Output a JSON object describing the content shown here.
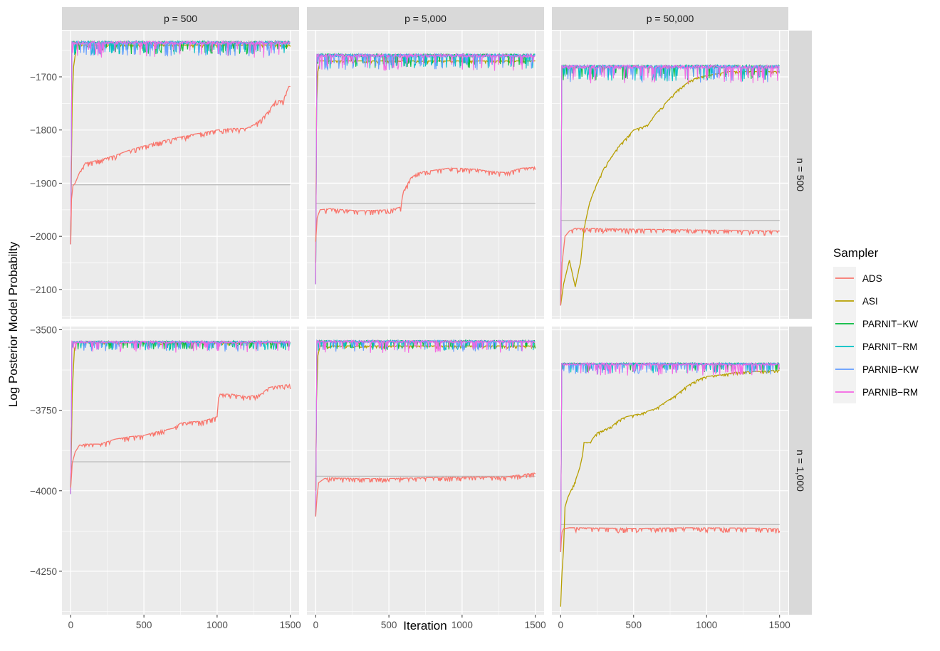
{
  "chart_data": {
    "type": "line",
    "xlabel": "Iteration",
    "ylabel": "Log Posterior Model Probabilty",
    "x_ticks": [
      0,
      500,
      1000,
      1500
    ],
    "x_range": [
      -60,
      1560
    ],
    "columns": [
      "p = 500",
      "p = 5,000",
      "p = 50,000"
    ],
    "rows": [
      "n = 500",
      "n = 1,000"
    ],
    "row_scales": [
      {
        "ylim": [
          -2155,
          -1613
        ],
        "ticks": [
          -2100,
          -2000,
          -1900,
          -1800,
          -1700
        ],
        "tick_labels": [
          "−2100",
          "−2000",
          "−1900",
          "−1800",
          "−1700"
        ]
      },
      {
        "ylim": [
          -4385,
          -3490
        ],
        "ticks": [
          -4250,
          -4000,
          -3750,
          -3500
        ],
        "tick_labels": [
          "−4250",
          "−4000",
          "−3750",
          "−3500"
        ]
      }
    ],
    "legend": {
      "title": "Sampler",
      "placement": "right",
      "entries": [
        {
          "name": "ADS",
          "color": "#F8766D"
        },
        {
          "name": "ASI",
          "color": "#B79F00"
        },
        {
          "name": "PARNIT−KW",
          "color": "#00BA38"
        },
        {
          "name": "PARNIT−RM",
          "color": "#00BFC4"
        },
        {
          "name": "PARNIB−KW",
          "color": "#619CFF"
        },
        {
          "name": "PARNIB−RM",
          "color": "#F564E3"
        }
      ]
    },
    "reference_line_color": "#BEBEBE",
    "panels": [
      {
        "row": 0,
        "col": 0,
        "reference": -1903,
        "parni": {
          "start": -2015,
          "top": -1633,
          "low": -1652
        },
        "asi": {
          "x": [
            0,
            8,
            20,
            40,
            1500
          ],
          "y": [
            -2010,
            -1760,
            -1680,
            -1640,
            -1640
          ]
        },
        "ads": {
          "x": [
            0,
            5,
            15,
            30,
            60,
            100,
            200,
            300,
            400,
            500,
            600,
            700,
            800,
            900,
            1000,
            1100,
            1200,
            1250,
            1300,
            1350,
            1400,
            1450,
            1490,
            1500
          ],
          "y": [
            -2015,
            -1930,
            -1905,
            -1900,
            -1880,
            -1862,
            -1856,
            -1848,
            -1838,
            -1830,
            -1822,
            -1816,
            -1810,
            -1805,
            -1800,
            -1797,
            -1797,
            -1790,
            -1780,
            -1765,
            -1745,
            -1745,
            -1718,
            -1718
          ]
        }
      },
      {
        "row": 0,
        "col": 1,
        "reference": -1938,
        "parni": {
          "start": -2090,
          "top": -1657,
          "low": -1677
        },
        "asi": {
          "x": [
            0,
            5,
            15,
            30,
            1500
          ],
          "y": [
            -2050,
            -1760,
            -1690,
            -1670,
            -1670
          ]
        },
        "ads": {
          "x": [
            0,
            10,
            30,
            100,
            200,
            300,
            400,
            500,
            580,
            600,
            620,
            650,
            700,
            800,
            900,
            1000,
            1100,
            1200,
            1300,
            1400,
            1500
          ],
          "y": [
            -2010,
            -1965,
            -1950,
            -1948,
            -1950,
            -1952,
            -1951,
            -1950,
            -1945,
            -1915,
            -1905,
            -1890,
            -1880,
            -1876,
            -1872,
            -1872,
            -1874,
            -1878,
            -1880,
            -1872,
            -1870
          ]
        }
      },
      {
        "row": 0,
        "col": 2,
        "reference": -1970,
        "parni": {
          "start": -2130,
          "top": -1678,
          "low": -1700
        },
        "asi": {
          "x": [
            0,
            20,
            60,
            100,
            140,
            160,
            200,
            250,
            300,
            350,
            400,
            450,
            500,
            550,
            600,
            650,
            700,
            750,
            800,
            850,
            900,
            950,
            1000,
            1050,
            1100,
            1150,
            1200,
            1300,
            1400,
            1500
          ],
          "y": [
            -2130,
            -2090,
            -2045,
            -2095,
            -2040,
            -1985,
            -1935,
            -1900,
            -1870,
            -1850,
            -1830,
            -1815,
            -1800,
            -1795,
            -1790,
            -1770,
            -1755,
            -1740,
            -1725,
            -1715,
            -1705,
            -1700,
            -1698,
            -1695,
            -1693,
            -1690,
            -1690,
            -1690,
            -1690,
            -1690
          ]
        },
        "ads": {
          "x": [
            0,
            10,
            30,
            60,
            100,
            1500
          ],
          "y": [
            -2130,
            -2050,
            -2000,
            -1990,
            -1985,
            -1990
          ]
        }
      },
      {
        "row": 1,
        "col": 0,
        "reference": -3910,
        "parni": {
          "start": -4010,
          "top": -3535,
          "low": -3555
        },
        "asi": {
          "x": [
            0,
            10,
            25,
            40,
            1500
          ],
          "y": [
            -3990,
            -3700,
            -3560,
            -3540,
            -3540
          ]
        },
        "ads": {
          "x": [
            0,
            10,
            30,
            60,
            100,
            200,
            300,
            400,
            500,
            600,
            700,
            750,
            800,
            900,
            1000,
            1010,
            1100,
            1200,
            1300,
            1350,
            1400,
            1450,
            1500
          ],
          "y": [
            -3990,
            -3915,
            -3880,
            -3858,
            -3855,
            -3855,
            -3840,
            -3832,
            -3828,
            -3815,
            -3806,
            -3790,
            -3786,
            -3784,
            -3770,
            -3700,
            -3700,
            -3708,
            -3700,
            -3680,
            -3675,
            -3672,
            -3670
          ]
        }
      },
      {
        "row": 1,
        "col": 1,
        "reference": -3955,
        "parni": {
          "start": -4080,
          "top": -3533,
          "low": -3555
        },
        "asi": {
          "x": [
            0,
            5,
            15,
            30,
            1500
          ],
          "y": [
            -4000,
            -3720,
            -3580,
            -3550,
            -3550
          ]
        },
        "ads": {
          "x": [
            0,
            8,
            20,
            60,
            100,
            300,
            500,
            700,
            900,
            1100,
            1300,
            1400,
            1500
          ],
          "y": [
            -4080,
            -4020,
            -3975,
            -3962,
            -3960,
            -3962,
            -3962,
            -3960,
            -3958,
            -3957,
            -3957,
            -3950,
            -3945
          ]
        }
      },
      {
        "row": 1,
        "col": 2,
        "reference": -4105,
        "parni": {
          "start": -4190,
          "top": -3603,
          "low": -3625
        },
        "asi": {
          "x": [
            0,
            5,
            10,
            20,
            30,
            50,
            80,
            100,
            130,
            150,
            160,
            200,
            250,
            300,
            350,
            400,
            450,
            500,
            550,
            600,
            650,
            700,
            750,
            800,
            850,
            900,
            950,
            1000,
            1100,
            1200,
            1300,
            1400,
            1500
          ],
          "y": [
            -4360,
            -4300,
            -4250,
            -4180,
            -4050,
            -4020,
            -3990,
            -3970,
            -3930,
            -3890,
            -3850,
            -3850,
            -3820,
            -3810,
            -3800,
            -3780,
            -3770,
            -3765,
            -3760,
            -3752,
            -3745,
            -3730,
            -3715,
            -3700,
            -3680,
            -3665,
            -3652,
            -3645,
            -3640,
            -3632,
            -3630,
            -3628,
            -3625
          ]
        },
        "ads": {
          "x": [
            0,
            8,
            20,
            60,
            100,
            500,
            900,
            1300,
            1500
          ],
          "y": [
            -4190,
            -4130,
            -4118,
            -4115,
            -4115,
            -4117,
            -4115,
            -4116,
            -4118
          ]
        }
      }
    ]
  }
}
